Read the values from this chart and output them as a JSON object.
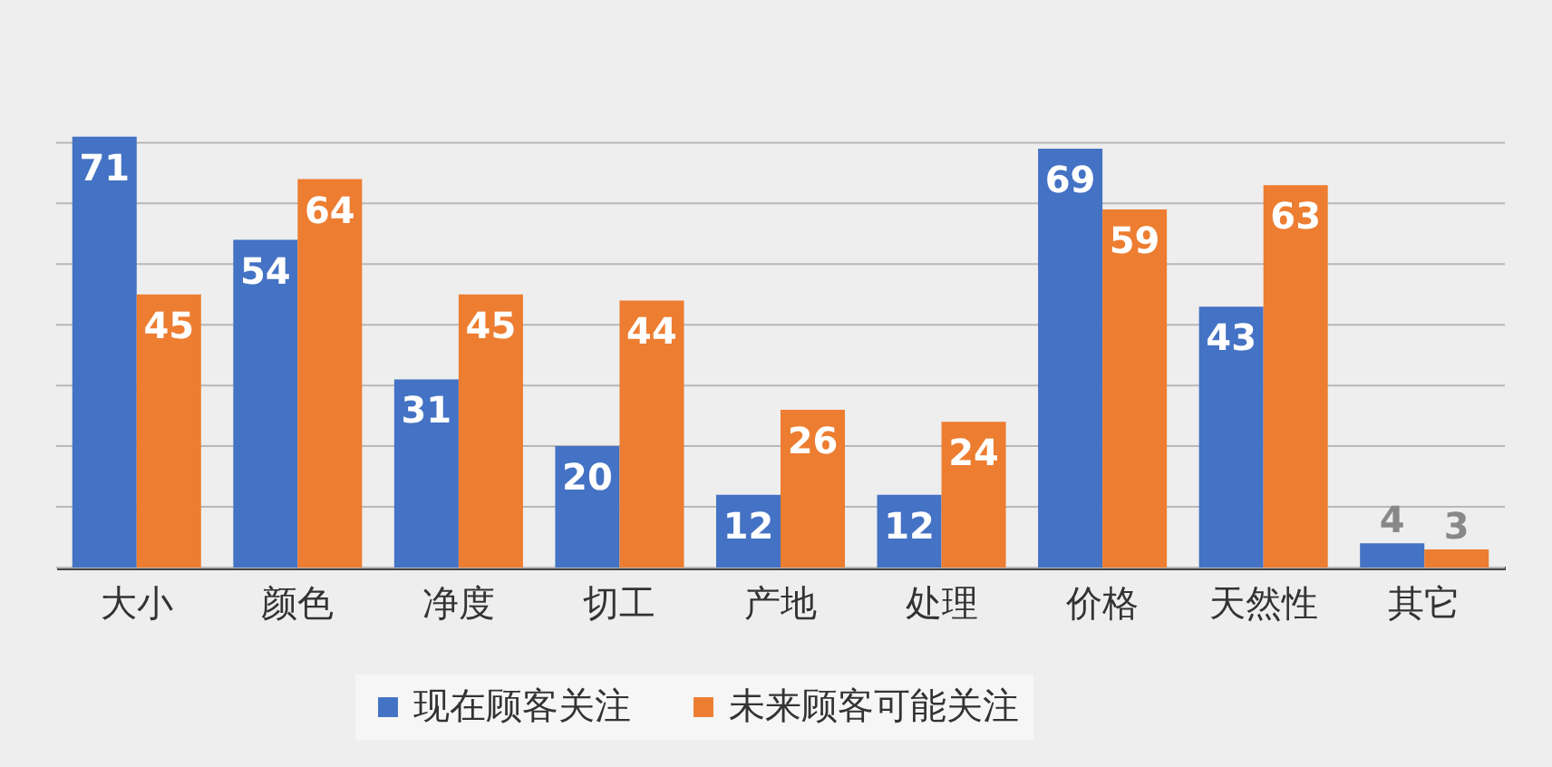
{
  "chart_data": {
    "type": "bar",
    "categories": [
      "大小",
      "颜色",
      "净度",
      "切工",
      "产地",
      "处理",
      "价格",
      "天然性",
      "其它"
    ],
    "series": [
      {
        "name": "现在顾客关注",
        "color": "#4472c4",
        "values": [
          71,
          54,
          31,
          20,
          12,
          12,
          69,
          43,
          4
        ]
      },
      {
        "name": "未来顾客可能关注",
        "color": "#ed7d31",
        "values": [
          45,
          64,
          45,
          44,
          26,
          24,
          59,
          63,
          3
        ]
      }
    ],
    "ylim": [
      0,
      72
    ],
    "yticks": [
      {
        "value": 0,
        "label": null
      },
      {
        "value": 10,
        "label": null
      },
      {
        "value": 20,
        "label": null
      },
      {
        "value": 30,
        "label": null
      },
      {
        "value": 40,
        "label": null
      },
      {
        "value": 50,
        "label": null
      },
      {
        "value": 60,
        "label": null
      },
      {
        "value": 70,
        "label": null
      }
    ],
    "grid": "y",
    "legend": "bottom",
    "data_labels": true
  }
}
